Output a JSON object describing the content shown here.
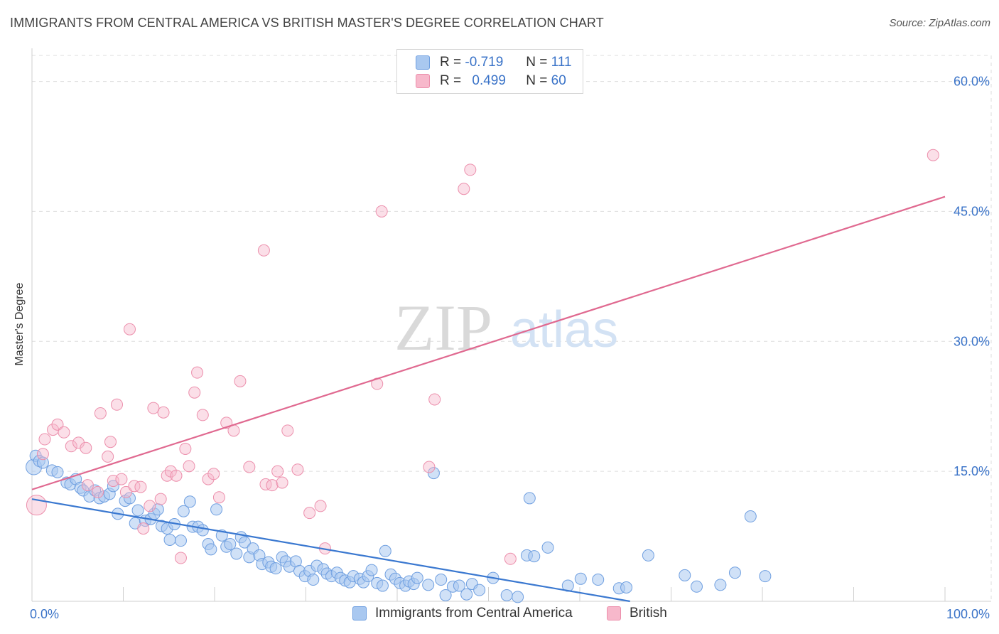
{
  "header": {
    "title": "IMMIGRANTS FROM CENTRAL AMERICA VS BRITISH MASTER'S DEGREE CORRELATION CHART",
    "source": "Source: ZipAtlas.com"
  },
  "legend": {
    "r_label": "R =",
    "n_label": "N =",
    "rows": [
      {
        "r": "-0.719",
        "n": "111",
        "color": "#a9c8f0"
      },
      {
        "r": "0.499",
        "n": "60",
        "color": "#f7b8cb"
      }
    ]
  },
  "watermark": {
    "part1": "ZIP",
    "part2": "atlas"
  },
  "colors": {
    "blue_fill": "#a9c8f0",
    "blue_stroke": "#6f9fe0",
    "blue_line": "#3a78d0",
    "pink_fill": "#f7b8cb",
    "pink_stroke": "#ec8fac",
    "pink_line": "#e06990",
    "axis_text": "#3a73c8",
    "grid": "#dddddd"
  },
  "chart_data": {
    "type": "scatter",
    "title": "IMMIGRANTS FROM CENTRAL AMERICA VS BRITISH MASTER'S DEGREE CORRELATION CHART",
    "xlabel": "",
    "ylabel": "Master's Degree",
    "xlim": [
      0,
      100
    ],
    "ylim": [
      0,
      63
    ],
    "x_tick_labels": [
      "0.0%",
      "100.0%"
    ],
    "y_ticks": [
      15,
      30,
      45,
      60
    ],
    "y_tick_labels": [
      "15.0%",
      "30.0%",
      "45.0%",
      "60.0%"
    ],
    "grid": true,
    "legend_position": "bottom",
    "series": [
      {
        "name": "Immigrants from Central America",
        "r": -0.719,
        "n": 111,
        "trend": {
          "x0": 0,
          "y0": 11.8,
          "x1": 65.5,
          "y1": 0
        },
        "points": [
          [
            0.2,
            15.5
          ],
          [
            0.4,
            16.8
          ],
          [
            0.8,
            16.2
          ],
          [
            1.2,
            16.0
          ],
          [
            2.2,
            15.1
          ],
          [
            2.8,
            14.9
          ],
          [
            3.8,
            13.7
          ],
          [
            4.2,
            13.5
          ],
          [
            4.8,
            14.1
          ],
          [
            5.3,
            13.1
          ],
          [
            5.6,
            12.8
          ],
          [
            6.3,
            12.1
          ],
          [
            6.9,
            12.8
          ],
          [
            7.4,
            11.9
          ],
          [
            7.9,
            12.1
          ],
          [
            8.5,
            12.4
          ],
          [
            8.9,
            13.3
          ],
          [
            9.4,
            10.1
          ],
          [
            10.2,
            11.6
          ],
          [
            10.7,
            11.9
          ],
          [
            11.3,
            9.0
          ],
          [
            11.6,
            10.5
          ],
          [
            12.4,
            9.3
          ],
          [
            13.0,
            9.5
          ],
          [
            13.4,
            10.1
          ],
          [
            13.8,
            10.6
          ],
          [
            14.2,
            8.7
          ],
          [
            14.8,
            8.4
          ],
          [
            15.1,
            7.1
          ],
          [
            15.6,
            8.9
          ],
          [
            16.3,
            7.0
          ],
          [
            16.6,
            10.4
          ],
          [
            17.3,
            11.5
          ],
          [
            17.6,
            8.6
          ],
          [
            18.2,
            8.6
          ],
          [
            18.7,
            8.2
          ],
          [
            19.3,
            6.6
          ],
          [
            19.6,
            6.0
          ],
          [
            20.2,
            10.6
          ],
          [
            20.8,
            7.6
          ],
          [
            21.3,
            6.3
          ],
          [
            21.7,
            6.6
          ],
          [
            22.4,
            5.5
          ],
          [
            22.9,
            7.4
          ],
          [
            23.3,
            6.8
          ],
          [
            23.8,
            5.1
          ],
          [
            24.2,
            6.1
          ],
          [
            24.9,
            5.3
          ],
          [
            25.2,
            4.3
          ],
          [
            25.9,
            4.5
          ],
          [
            26.2,
            4.0
          ],
          [
            26.7,
            3.8
          ],
          [
            27.4,
            5.1
          ],
          [
            27.8,
            4.6
          ],
          [
            28.2,
            4.0
          ],
          [
            28.9,
            4.6
          ],
          [
            29.3,
            3.5
          ],
          [
            29.9,
            2.9
          ],
          [
            30.4,
            3.5
          ],
          [
            30.8,
            2.5
          ],
          [
            31.2,
            4.1
          ],
          [
            31.9,
            3.7
          ],
          [
            32.3,
            3.2
          ],
          [
            32.8,
            2.9
          ],
          [
            33.4,
            3.3
          ],
          [
            33.8,
            2.7
          ],
          [
            34.3,
            2.4
          ],
          [
            34.8,
            2.2
          ],
          [
            35.2,
            2.9
          ],
          [
            35.9,
            2.6
          ],
          [
            36.3,
            2.2
          ],
          [
            36.8,
            2.9
          ],
          [
            37.2,
            3.6
          ],
          [
            37.8,
            2.1
          ],
          [
            38.4,
            1.8
          ],
          [
            38.7,
            5.8
          ],
          [
            39.3,
            3.1
          ],
          [
            39.8,
            2.6
          ],
          [
            40.3,
            2.1
          ],
          [
            40.9,
            1.8
          ],
          [
            41.3,
            2.3
          ],
          [
            41.8,
            2.0
          ],
          [
            42.2,
            2.7
          ],
          [
            43.4,
            1.9
          ],
          [
            44.0,
            14.8
          ],
          [
            44.8,
            2.5
          ],
          [
            45.3,
            0.7
          ],
          [
            46.1,
            1.7
          ],
          [
            46.8,
            1.8
          ],
          [
            47.6,
            0.8
          ],
          [
            48.2,
            2.0
          ],
          [
            49.0,
            1.3
          ],
          [
            50.5,
            2.7
          ],
          [
            52.0,
            0.7
          ],
          [
            53.2,
            0.5
          ],
          [
            54.5,
            11.9
          ],
          [
            54.2,
            5.3
          ],
          [
            55.0,
            5.2
          ],
          [
            56.5,
            6.2
          ],
          [
            58.7,
            1.8
          ],
          [
            60.1,
            2.6
          ],
          [
            62.0,
            2.5
          ],
          [
            64.3,
            1.5
          ],
          [
            65.1,
            1.6
          ],
          [
            67.5,
            5.3
          ],
          [
            71.5,
            3.0
          ],
          [
            72.8,
            1.7
          ],
          [
            75.4,
            1.9
          ],
          [
            78.7,
            9.8
          ],
          [
            80.3,
            2.9
          ],
          [
            77.0,
            3.3
          ]
        ]
      },
      {
        "name": "British",
        "r": 0.499,
        "n": 60,
        "trend": {
          "x0": 0,
          "y0": 12.9,
          "x1": 100,
          "y1": 46.7
        },
        "points": [
          [
            0.5,
            11.1
          ],
          [
            1.2,
            17.0
          ],
          [
            1.4,
            18.7
          ],
          [
            2.3,
            19.8
          ],
          [
            2.8,
            20.4
          ],
          [
            3.5,
            19.5
          ],
          [
            4.3,
            17.9
          ],
          [
            5.1,
            18.3
          ],
          [
            5.9,
            17.7
          ],
          [
            6.1,
            13.4
          ],
          [
            7.2,
            12.6
          ],
          [
            7.5,
            21.7
          ],
          [
            8.3,
            16.7
          ],
          [
            8.6,
            18.4
          ],
          [
            8.9,
            13.9
          ],
          [
            9.3,
            22.7
          ],
          [
            9.8,
            14.1
          ],
          [
            10.3,
            12.6
          ],
          [
            10.7,
            31.4
          ],
          [
            11.2,
            13.3
          ],
          [
            11.9,
            13.2
          ],
          [
            12.2,
            8.4
          ],
          [
            12.9,
            11.0
          ],
          [
            13.3,
            22.3
          ],
          [
            14.1,
            11.8
          ],
          [
            14.4,
            21.8
          ],
          [
            14.8,
            14.5
          ],
          [
            15.2,
            15.0
          ],
          [
            15.8,
            14.5
          ],
          [
            16.3,
            5.0
          ],
          [
            16.8,
            17.6
          ],
          [
            17.2,
            15.6
          ],
          [
            17.8,
            24.1
          ],
          [
            18.1,
            26.4
          ],
          [
            18.7,
            21.5
          ],
          [
            19.3,
            14.1
          ],
          [
            19.9,
            14.7
          ],
          [
            20.5,
            12.0
          ],
          [
            21.3,
            20.6
          ],
          [
            22.1,
            19.7
          ],
          [
            22.8,
            25.4
          ],
          [
            23.8,
            15.5
          ],
          [
            25.4,
            40.5
          ],
          [
            25.6,
            13.5
          ],
          [
            26.3,
            13.4
          ],
          [
            26.9,
            15.0
          ],
          [
            27.4,
            13.7
          ],
          [
            28.0,
            19.7
          ],
          [
            29.1,
            15.2
          ],
          [
            30.4,
            10.2
          ],
          [
            31.6,
            11.0
          ],
          [
            32.1,
            6.1
          ],
          [
            37.8,
            25.1
          ],
          [
            38.3,
            45.0
          ],
          [
            43.5,
            15.5
          ],
          [
            44.1,
            23.3
          ],
          [
            47.3,
            47.6
          ],
          [
            48.0,
            49.8
          ],
          [
            52.4,
            4.9
          ],
          [
            98.7,
            51.5
          ]
        ]
      }
    ]
  }
}
